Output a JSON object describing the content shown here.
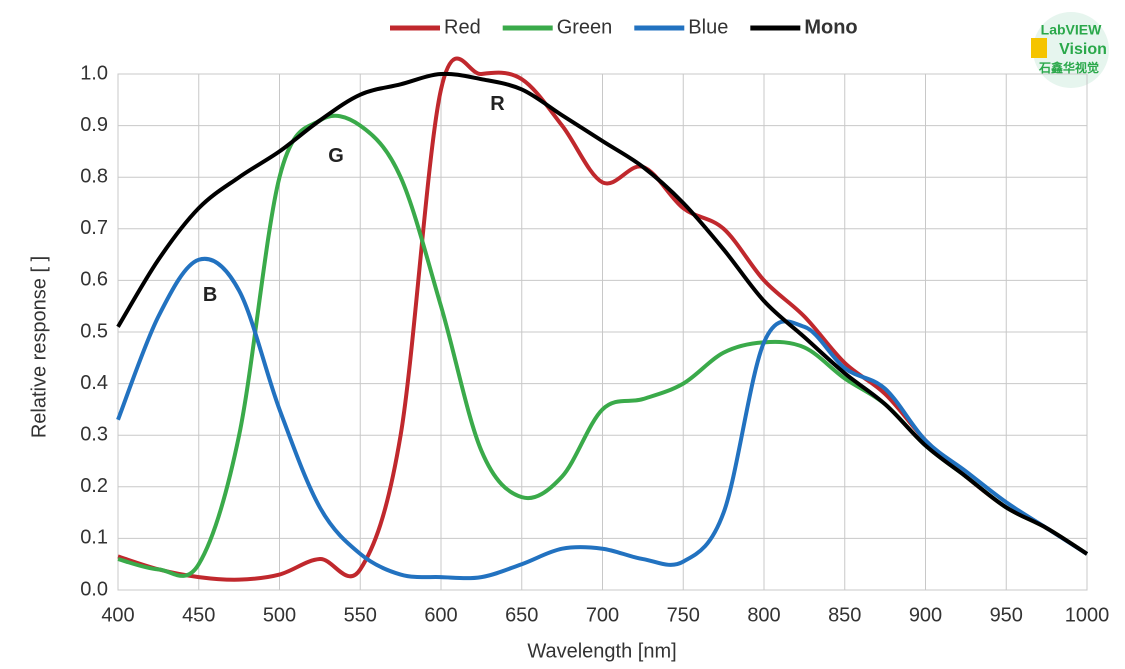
{
  "chart_data": {
    "type": "line",
    "x_label": "Wavelength [nm]",
    "y_label": "Relative response [ ]",
    "x": [
      400,
      425,
      450,
      475,
      500,
      525,
      550,
      575,
      600,
      625,
      650,
      675,
      700,
      725,
      750,
      775,
      800,
      825,
      850,
      875,
      900,
      925,
      950,
      975,
      1000
    ],
    "series": [
      {
        "name": "Red",
        "color": "#c0282d",
        "values": [
          0.065,
          0.04,
          0.025,
          0.02,
          0.03,
          0.06,
          0.04,
          0.3,
          0.97,
          1.0,
          0.99,
          0.9,
          0.79,
          0.82,
          0.74,
          0.7,
          0.6,
          0.53,
          0.44,
          0.38,
          0.29,
          0.22,
          0.16,
          0.12,
          0.07
        ]
      },
      {
        "name": "Green",
        "color": "#3aaa4a",
        "values": [
          0.06,
          0.04,
          0.05,
          0.3,
          0.8,
          0.91,
          0.9,
          0.8,
          0.55,
          0.27,
          0.18,
          0.22,
          0.35,
          0.37,
          0.4,
          0.46,
          0.48,
          0.47,
          0.41,
          0.36,
          0.28,
          0.22,
          0.16,
          0.12,
          0.07
        ]
      },
      {
        "name": "Blue",
        "color": "#2272c0",
        "values": [
          0.33,
          0.53,
          0.64,
          0.58,
          0.35,
          0.16,
          0.07,
          0.03,
          0.025,
          0.025,
          0.05,
          0.08,
          0.08,
          0.06,
          0.055,
          0.15,
          0.48,
          0.51,
          0.43,
          0.39,
          0.29,
          0.23,
          0.17,
          0.12,
          0.07
        ]
      },
      {
        "name": "Mono",
        "color": "#000000",
        "values": [
          0.51,
          0.64,
          0.74,
          0.8,
          0.85,
          0.91,
          0.96,
          0.98,
          1.0,
          0.99,
          0.97,
          0.92,
          0.87,
          0.82,
          0.75,
          0.66,
          0.56,
          0.49,
          0.42,
          0.36,
          0.28,
          0.22,
          0.16,
          0.12,
          0.07
        ]
      }
    ],
    "xlim": [
      400,
      1000
    ],
    "xticks": [
      400,
      450,
      500,
      550,
      600,
      650,
      700,
      750,
      800,
      850,
      900,
      950,
      1000
    ],
    "ylim": [
      0,
      1
    ],
    "yticks": [
      {
        "value": 0,
        "label": "0.0"
      },
      0.1,
      0.2,
      0.3,
      0.4,
      0.5,
      0.6,
      0.7,
      0.8,
      0.9,
      {
        "value": 1,
        "label": "1.0"
      }
    ],
    "grid": true,
    "legend": "top",
    "annotations": [
      {
        "text": "R",
        "x": 635,
        "y": 0.94
      },
      {
        "text": "G",
        "x": 535,
        "y": 0.84
      },
      {
        "text": "B",
        "x": 457,
        "y": 0.57
      }
    ]
  },
  "logo": {
    "line1": "LabVIEW",
    "line2": "Vision",
    "line3": "石鑫华视觉"
  }
}
